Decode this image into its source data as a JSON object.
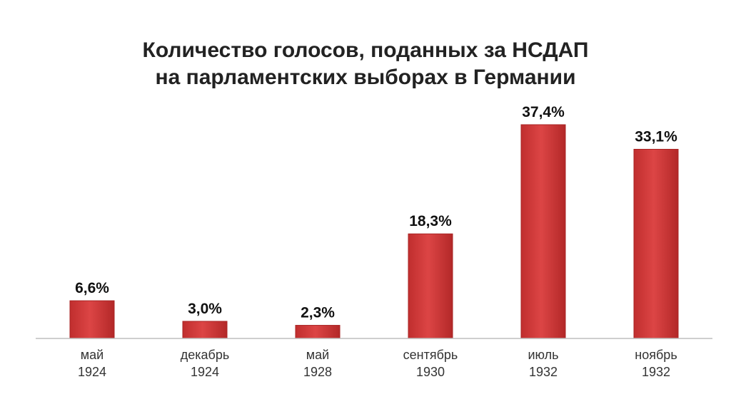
{
  "chart_data": {
    "type": "bar",
    "title": [
      "Количество голосов, поданных за НСДАП",
      "на парламентских выборах в Германии"
    ],
    "categories": [
      [
        "май",
        "1924"
      ],
      [
        "декабрь",
        "1924"
      ],
      [
        "май",
        "1928"
      ],
      [
        "сентябрь",
        "1930"
      ],
      [
        "июль",
        "1932"
      ],
      [
        "ноябрь",
        "1932"
      ]
    ],
    "values": [
      6.6,
      3.0,
      2.3,
      18.3,
      37.4,
      33.1
    ],
    "value_labels": [
      "6,6%",
      "3,0%",
      "2,3%",
      "18,3%",
      "37,4%",
      "33,1%"
    ],
    "ylim": [
      0,
      37.4
    ],
    "grid": false,
    "colors": {
      "bar": "#d63c3c",
      "bar_dark": "#a82424",
      "axis": "#bdbdbd"
    }
  }
}
